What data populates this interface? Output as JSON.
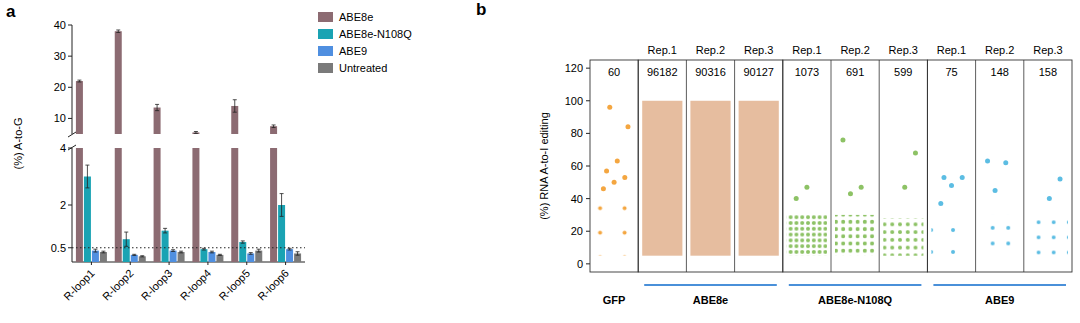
{
  "chart_data": [
    {
      "type": "bar",
      "panel_label": "a",
      "y_label": "(%) A-to-G",
      "categories": [
        "R-loop1",
        "R-loop2",
        "R-loop3",
        "R-loop4",
        "R-loop5",
        "R-loop6"
      ],
      "series": [
        {
          "name": "ABE8e",
          "color": "#8c6b72",
          "values": [
            22,
            38,
            13.5,
            5.5,
            14,
            7.5
          ],
          "errors": [
            0.3,
            0.4,
            1.0,
            0.3,
            2.0,
            0.4
          ]
        },
        {
          "name": "ABE8e-N108Q",
          "color": "#1aa3b3",
          "values": [
            3.0,
            0.8,
            1.1,
            0.45,
            0.7,
            2.0
          ],
          "errors": [
            0.4,
            0.25,
            0.08,
            0.03,
            0.04,
            0.4
          ]
        },
        {
          "name": "ABE9",
          "color": "#4f8fe0",
          "values": [
            0.4,
            0.25,
            0.4,
            0.35,
            0.3,
            0.45
          ],
          "errors": [
            0.05,
            0.02,
            0.03,
            0.03,
            0.03,
            0.03
          ]
        },
        {
          "name": "Untreated",
          "color": "#7a7a7a",
          "values": [
            0.35,
            0.2,
            0.35,
            0.25,
            0.4,
            0.3
          ],
          "errors": [
            0.03,
            0.02,
            0.03,
            0.02,
            0.05,
            0.06
          ]
        }
      ],
      "ylim": [
        0,
        40
      ],
      "ybreak": [
        4,
        5
      ],
      "yticks": [
        0.5,
        2,
        4,
        10,
        20,
        30,
        40
      ],
      "threshold": 0.5,
      "legend": "upper right"
    },
    {
      "type": "strip",
      "panel_label": "b",
      "y_label": "(%) RNA A-to-I editing",
      "ylim": [
        -5,
        125
      ],
      "yticks": [
        0,
        20,
        40,
        60,
        80,
        100,
        120
      ],
      "series": [
        {
          "name": "GFP",
          "color": "#f4a640",
          "columns": [
            {
              "count": 60,
              "range": [
                5,
                40
              ],
              "outliers": [
                46,
                50,
                53,
                57,
                63,
                84,
                96
              ]
            }
          ]
        },
        {
          "name": "ABE8e",
          "color": "#e6bd9f",
          "columns": [
            {
              "label": "Rep.1",
              "count": 96182,
              "range": [
                5,
                100
              ]
            },
            {
              "label": "Rep.2",
              "count": 90316,
              "range": [
                5,
                100
              ]
            },
            {
              "label": "Rep.3",
              "count": 90127,
              "range": [
                5,
                100
              ]
            }
          ]
        },
        {
          "name": "ABE8e-N108Q",
          "color": "#8dc265",
          "columns": [
            {
              "label": "Rep.1",
              "count": 1073,
              "range": [
                5,
                30
              ],
              "outliers": [
                40,
                47
              ]
            },
            {
              "label": "Rep.2",
              "count": 691,
              "range": [
                5,
                30
              ],
              "outliers": [
                43,
                47,
                76
              ]
            },
            {
              "label": "Rep.3",
              "count": 599,
              "range": [
                5,
                28
              ],
              "outliers": [
                47,
                68
              ]
            }
          ]
        },
        {
          "name": "ABE9",
          "color": "#5cbde3",
          "columns": [
            {
              "label": "Rep.1",
              "count": 75,
              "range": [
                5,
                30
              ],
              "outliers": [
                37,
                48,
                53,
                53
              ]
            },
            {
              "label": "Rep.2",
              "count": 148,
              "range": [
                5,
                30
              ],
              "outliers": [
                45,
                62,
                63
              ]
            },
            {
              "label": "Rep.3",
              "count": 158,
              "range": [
                5,
                30
              ],
              "outliers": [
                40,
                52
              ]
            }
          ]
        }
      ]
    }
  ]
}
